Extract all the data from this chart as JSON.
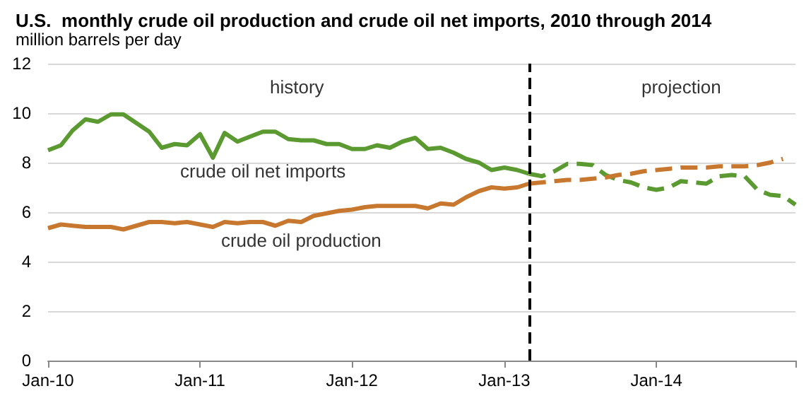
{
  "chart_data": {
    "type": "line",
    "title": "U.S.  monthly crude oil production and crude oil net imports, 2010 through 2014",
    "subtitle": "million barrels per day",
    "xlim": [
      "2010-01",
      "2014-12"
    ],
    "xticks": [
      {
        "value": "2010-01",
        "label": "Jan-10"
      },
      {
        "value": "2011-01",
        "label": "Jan-11"
      },
      {
        "value": "2012-01",
        "label": "Jan-12"
      },
      {
        "value": "2013-01",
        "label": "Jan-13"
      },
      {
        "value": "2014-01",
        "label": "Jan-14"
      },
      {
        "value": "2014-12",
        "label": null
      }
    ],
    "ylim": [
      0,
      12
    ],
    "yticks": [
      0,
      2,
      4,
      6,
      8,
      10,
      12
    ],
    "grid": "y",
    "legend": false,
    "marker": "none",
    "series": [
      {
        "name": "crude oil net imports",
        "color": "#5b9a31",
        "line_style": "solid",
        "x": [
          "2010-01",
          "2010-02",
          "2010-03",
          "2010-04",
          "2010-05",
          "2010-06",
          "2010-07",
          "2010-08",
          "2010-09",
          "2010-10",
          "2010-11",
          "2010-12",
          "2011-01",
          "2011-02",
          "2011-03",
          "2011-04",
          "2011-05",
          "2011-06",
          "2011-07",
          "2011-08",
          "2011-09",
          "2011-10",
          "2011-11",
          "2011-12",
          "2012-01",
          "2012-02",
          "2012-03",
          "2012-04",
          "2012-05",
          "2012-06",
          "2012-07",
          "2012-08",
          "2012-09",
          "2012-10",
          "2012-11",
          "2012-12",
          "2013-01",
          "2013-02",
          "2013-03"
        ],
        "values": [
          8.5,
          8.7,
          9.3,
          9.75,
          9.65,
          9.95,
          9.95,
          9.6,
          9.25,
          8.6,
          8.75,
          8.7,
          9.15,
          8.2,
          9.2,
          8.85,
          9.05,
          9.25,
          9.25,
          8.95,
          8.9,
          8.9,
          8.75,
          8.75,
          8.55,
          8.55,
          8.7,
          8.6,
          8.85,
          9.0,
          8.55,
          8.6,
          8.4,
          8.15,
          8.0,
          7.7,
          7.8,
          7.7,
          7.55
        ]
      },
      {
        "color": "#5b9a31",
        "line_style": "dashed",
        "x": [
          "2013-03",
          "2013-04",
          "2013-05",
          "2013-06",
          "2013-07",
          "2013-08",
          "2013-09",
          "2013-10",
          "2013-11",
          "2013-12",
          "2014-01",
          "2014-02",
          "2014-03",
          "2014-04",
          "2014-05",
          "2014-06",
          "2014-07",
          "2014-08",
          "2014-09",
          "2014-10",
          "2014-11",
          "2014-12"
        ],
        "values": [
          7.55,
          7.45,
          7.65,
          7.95,
          7.95,
          7.9,
          7.5,
          7.3,
          7.2,
          7.0,
          6.9,
          7.0,
          7.25,
          7.2,
          7.15,
          7.45,
          7.5,
          7.45,
          6.9,
          6.7,
          6.65,
          6.3
        ]
      },
      {
        "name": "crude oil production",
        "color": "#c8772e",
        "line_style": "solid",
        "x": [
          "2010-01",
          "2010-02",
          "2010-03",
          "2010-04",
          "2010-05",
          "2010-06",
          "2010-07",
          "2010-08",
          "2010-09",
          "2010-10",
          "2010-11",
          "2010-12",
          "2011-01",
          "2011-02",
          "2011-03",
          "2011-04",
          "2011-05",
          "2011-06",
          "2011-07",
          "2011-08",
          "2011-09",
          "2011-10",
          "2011-11",
          "2011-12",
          "2012-01",
          "2012-02",
          "2012-03",
          "2012-04",
          "2012-05",
          "2012-06",
          "2012-07",
          "2012-08",
          "2012-09",
          "2012-10",
          "2012-11",
          "2012-12",
          "2013-01",
          "2013-02",
          "2013-03"
        ],
        "values": [
          5.35,
          5.5,
          5.45,
          5.4,
          5.4,
          5.4,
          5.3,
          5.45,
          5.6,
          5.6,
          5.55,
          5.6,
          5.5,
          5.4,
          5.6,
          5.55,
          5.6,
          5.6,
          5.45,
          5.65,
          5.6,
          5.85,
          5.95,
          6.05,
          6.1,
          6.2,
          6.25,
          6.25,
          6.25,
          6.25,
          6.15,
          6.35,
          6.3,
          6.6,
          6.85,
          7.0,
          6.95,
          7.0,
          7.15
        ]
      },
      {
        "color": "#c8772e",
        "line_style": "dashed",
        "x": [
          "2013-03",
          "2013-04",
          "2013-05",
          "2013-06",
          "2013-07",
          "2013-08",
          "2013-09",
          "2013-10",
          "2013-11",
          "2013-12",
          "2014-01",
          "2014-02",
          "2014-03",
          "2014-04",
          "2014-05",
          "2014-06",
          "2014-07",
          "2014-08",
          "2014-09",
          "2014-10",
          "2014-11"
        ],
        "values": [
          7.15,
          7.2,
          7.25,
          7.3,
          7.3,
          7.35,
          7.4,
          7.5,
          7.55,
          7.65,
          7.7,
          7.75,
          7.8,
          7.8,
          7.8,
          7.85,
          7.85,
          7.85,
          7.9,
          8.0,
          8.15
        ]
      }
    ],
    "ref_lines": [
      {
        "axis": "x",
        "value": "2013-03",
        "color": "#000000",
        "line_style": "dashed"
      }
    ],
    "annotations": [
      "history",
      "projection"
    ]
  }
}
